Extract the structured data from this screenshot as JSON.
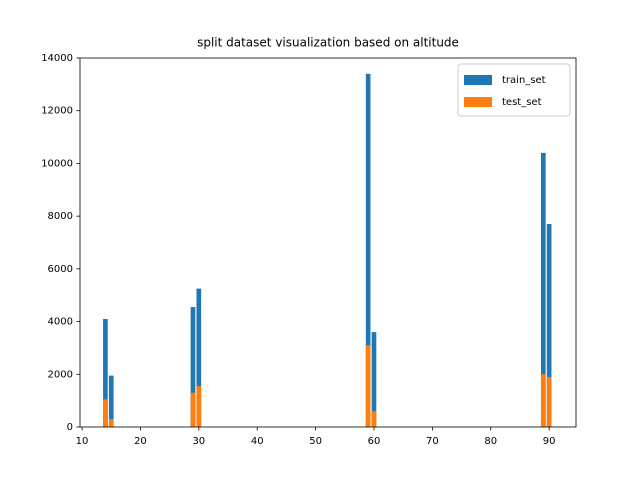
{
  "chart_data": {
    "type": "bar",
    "title": "split dataset visualization based on altitude",
    "x": [
      14,
      15,
      29,
      30,
      59,
      60,
      89,
      90
    ],
    "series": [
      {
        "name": "train_set",
        "color": "#1f77b4",
        "values": [
          4100,
          1950,
          4550,
          5250,
          13400,
          3600,
          10400,
          7700
        ]
      },
      {
        "name": "test_set",
        "color": "#ff7f0e",
        "values": [
          1050,
          300,
          1300,
          1550,
          3100,
          600,
          2000,
          1900
        ]
      }
    ],
    "xlim": [
      9.65,
      94.6
    ],
    "xticks": [
      10,
      20,
      30,
      40,
      50,
      60,
      70,
      80,
      90
    ],
    "ylim": [
      0,
      14000
    ],
    "yticks": [
      0,
      2000,
      4000,
      6000,
      8000,
      10000,
      12000,
      14000
    ],
    "legend": "upper right",
    "grid": false
  }
}
